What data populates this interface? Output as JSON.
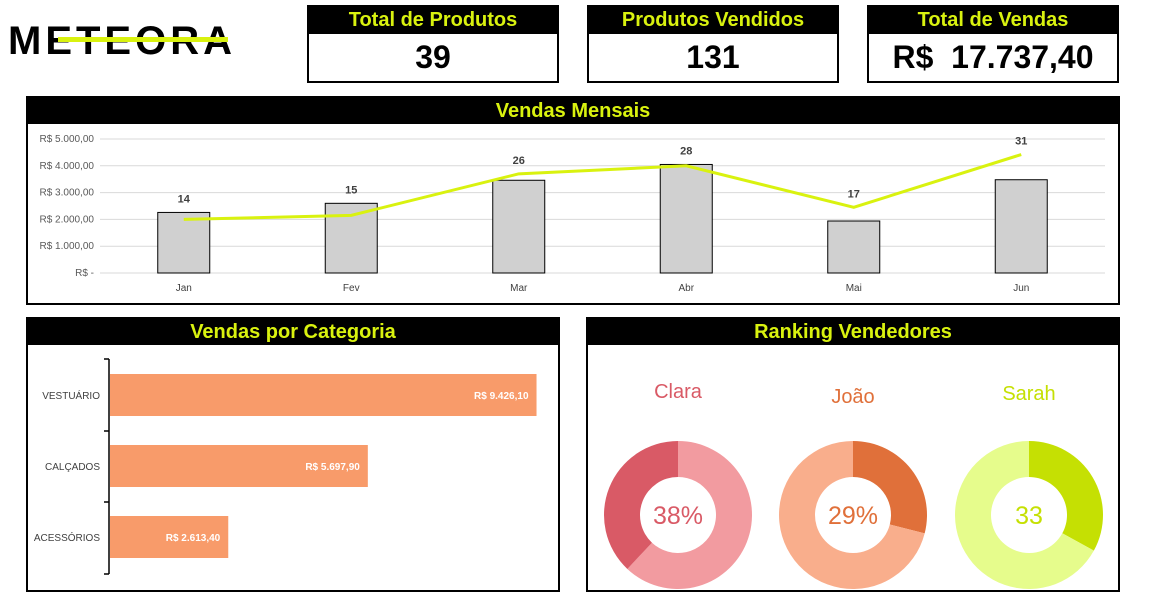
{
  "brand": {
    "logo_text": "METEORA"
  },
  "kpis": [
    {
      "title": "Total de Produtos",
      "value": "39"
    },
    {
      "title": "Produtos Vendidos",
      "value": "131"
    },
    {
      "title": "Total de Vendas",
      "value": "R$  17.737,40"
    }
  ],
  "colors": {
    "accent": "#d9f20f",
    "bar_gray": "#d0d0d0",
    "category_bar": "#f89b6a",
    "clara": [
      "#d95a66",
      "#f29ba0"
    ],
    "joao": [
      "#e0703a",
      "#f9ae8c"
    ],
    "sarah": [
      "#c5e003",
      "#e6fc8c"
    ]
  },
  "chart_data": [
    {
      "type": "bar",
      "title": "Vendas Mensais",
      "categories": [
        "Jan",
        "Fev",
        "Mar",
        "Abr",
        "Mai",
        "Jun"
      ],
      "series": [
        {
          "values": [
            2260,
            2600,
            3460,
            4050,
            1940,
            3480
          ]
        },
        {
          "type": "line",
          "values": [
            2000,
            2150,
            3700,
            4000,
            2450,
            4420
          ]
        }
      ],
      "data_labels": [
        "14",
        "15",
        "26",
        "28",
        "17",
        "31"
      ],
      "yticks": [
        "R$ -",
        "R$ 1.000,00",
        "R$ 2.000,00",
        "R$ 3.000,00",
        "R$ 4.000,00",
        "R$ 5.000,00"
      ],
      "ylim": [
        0,
        5000
      ],
      "grid": true
    },
    {
      "type": "bar",
      "orientation": "horizontal",
      "title": "Vendas por Categoria",
      "categories": [
        "VESTUÁRIO",
        "CALÇADOS",
        "ACESSÓRIOS"
      ],
      "values": [
        9426.1,
        5697.9,
        2613.4
      ],
      "data_labels": [
        "R$ 9.426,10",
        "R$ 5.697,90",
        "R$ 2.613,40"
      ],
      "xlim": [
        0,
        12000
      ]
    },
    {
      "type": "pie",
      "title": "Ranking Vendedores",
      "donuts": [
        {
          "name": "Clara",
          "value": 38,
          "label": "38%"
        },
        {
          "name": "João",
          "value": 29,
          "label": "29%"
        },
        {
          "name": "Sarah",
          "value": 33,
          "label": "33"
        }
      ]
    }
  ]
}
